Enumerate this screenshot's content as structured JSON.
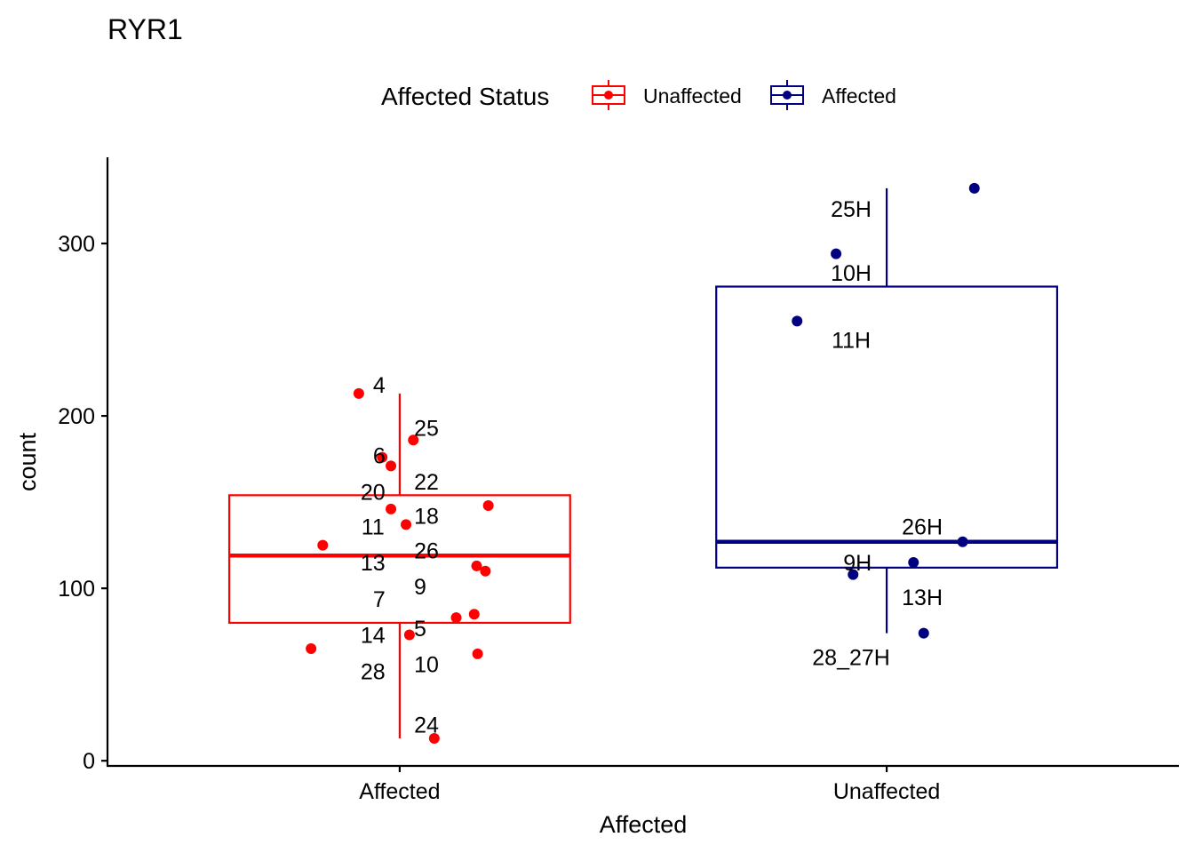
{
  "chart_data": {
    "type": "boxplot",
    "title": "RYR1",
    "xlabel": "Affected",
    "ylabel": "count",
    "ylim": [
      -3,
      350
    ],
    "yticks": [
      0,
      100,
      200,
      300
    ],
    "categories": [
      "Affected",
      "Unaffected"
    ],
    "legend": {
      "title": "Affected Status",
      "position": "top",
      "entries": [
        {
          "name": "Unaffected",
          "color": "#ff0000"
        },
        {
          "name": "Affected",
          "color": "#000080"
        }
      ]
    },
    "boxes": [
      {
        "category": "Affected",
        "legend_entry": "Unaffected",
        "color": "#ff0000",
        "whisker_low": 13,
        "q1": 80,
        "median": 119,
        "q3": 154,
        "whisker_high": 213
      },
      {
        "category": "Unaffected",
        "legend_entry": "Affected",
        "color": "#000080",
        "whisker_low": 74,
        "q1": 112,
        "median": 127,
        "q3": 275,
        "whisker_high": 332
      }
    ],
    "points": [
      {
        "category": "Affected",
        "jitter": -0.084,
        "y": 213
      },
      {
        "category": "Affected",
        "jitter": 0.028,
        "y": 186
      },
      {
        "category": "Affected",
        "jitter": -0.036,
        "y": 176
      },
      {
        "category": "Affected",
        "jitter": -0.018,
        "y": 171
      },
      {
        "category": "Affected",
        "jitter": 0.182,
        "y": 148
      },
      {
        "category": "Affected",
        "jitter": -0.018,
        "y": 146
      },
      {
        "category": "Affected",
        "jitter": 0.013,
        "y": 137
      },
      {
        "category": "Affected",
        "jitter": -0.158,
        "y": 125
      },
      {
        "category": "Affected",
        "jitter": 0.158,
        "y": 113
      },
      {
        "category": "Affected",
        "jitter": 0.176,
        "y": 110
      },
      {
        "category": "Affected",
        "jitter": 0.153,
        "y": 85
      },
      {
        "category": "Affected",
        "jitter": 0.116,
        "y": 83
      },
      {
        "category": "Affected",
        "jitter": 0.02,
        "y": 73
      },
      {
        "category": "Affected",
        "jitter": -0.182,
        "y": 65
      },
      {
        "category": "Affected",
        "jitter": 0.16,
        "y": 62
      },
      {
        "category": "Affected",
        "jitter": 0.071,
        "y": 13
      },
      {
        "category": "Unaffected",
        "jitter": 0.18,
        "y": 332
      },
      {
        "category": "Unaffected",
        "jitter": -0.104,
        "y": 294
      },
      {
        "category": "Unaffected",
        "jitter": -0.184,
        "y": 255
      },
      {
        "category": "Unaffected",
        "jitter": 0.156,
        "y": 127
      },
      {
        "category": "Unaffected",
        "jitter": 0.055,
        "y": 115
      },
      {
        "category": "Unaffected",
        "jitter": -0.069,
        "y": 108
      },
      {
        "category": "Unaffected",
        "jitter": 0.076,
        "y": 74
      }
    ],
    "point_labels": [
      {
        "text": "4",
        "category": "Affected",
        "offset": -0.042,
        "y": 218
      },
      {
        "text": "25",
        "category": "Affected",
        "offset": 0.055,
        "y": 193
      },
      {
        "text": "6",
        "category": "Affected",
        "offset": -0.042,
        "y": 177
      },
      {
        "text": "22",
        "category": "Affected",
        "offset": 0.055,
        "y": 162
      },
      {
        "text": "20",
        "category": "Affected",
        "offset": -0.055,
        "y": 156
      },
      {
        "text": "18",
        "category": "Affected",
        "offset": 0.055,
        "y": 142
      },
      {
        "text": "11",
        "category": "Affected",
        "offset": -0.055,
        "y": 136
      },
      {
        "text": "26",
        "category": "Affected",
        "offset": 0.055,
        "y": 122
      },
      {
        "text": "13",
        "category": "Affected",
        "offset": -0.055,
        "y": 115
      },
      {
        "text": "9",
        "category": "Affected",
        "offset": 0.042,
        "y": 101
      },
      {
        "text": "7",
        "category": "Affected",
        "offset": -0.042,
        "y": 94
      },
      {
        "text": "5",
        "category": "Affected",
        "offset": 0.042,
        "y": 77
      },
      {
        "text": "14",
        "category": "Affected",
        "offset": -0.055,
        "y": 73
      },
      {
        "text": "10",
        "category": "Affected",
        "offset": 0.055,
        "y": 56
      },
      {
        "text": "28",
        "category": "Affected",
        "offset": -0.055,
        "y": 52
      },
      {
        "text": "24",
        "category": "Affected",
        "offset": 0.055,
        "y": 21
      },
      {
        "text": "25H",
        "category": "Unaffected",
        "offset": -0.073,
        "y": 320
      },
      {
        "text": "10H",
        "category": "Unaffected",
        "offset": -0.073,
        "y": 283
      },
      {
        "text": "11H",
        "category": "Unaffected",
        "offset": -0.073,
        "y": 244
      },
      {
        "text": "26H",
        "category": "Unaffected",
        "offset": 0.073,
        "y": 136
      },
      {
        "text": "9H",
        "category": "Unaffected",
        "offset": -0.06,
        "y": 115
      },
      {
        "text": "13H",
        "category": "Unaffected",
        "offset": 0.073,
        "y": 95
      },
      {
        "text": "28_27H",
        "category": "Unaffected",
        "offset": -0.073,
        "y": 60
      }
    ],
    "grid": false
  }
}
